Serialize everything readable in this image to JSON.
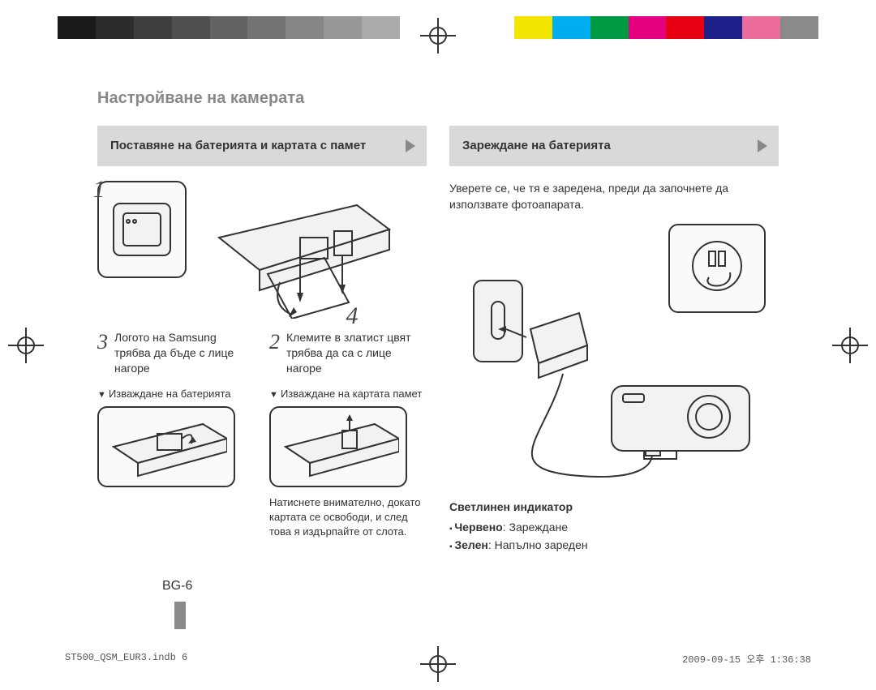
{
  "color_bar": [
    "#ffffff",
    "#fafaa0",
    "#5bd7e8",
    "#5fd060",
    "#e85ecb",
    "#d83030",
    "#2a35c8",
    "#141414",
    "#141414",
    "#303030",
    "#4a4a4a",
    "#666666",
    "#808080",
    "#9a9a9a",
    "#b4b4b4",
    "#ffffff",
    "#ffffff",
    "#f4ea3a",
    "#1fb6e0",
    "#1f9e3c",
    "#d93fc0",
    "#d12a2a",
    "#1f33b8",
    "#ffffff",
    "#f0c800",
    "#00a7d4",
    "#00a040",
    "#e23fb8",
    "#d22020",
    "#1a2db0",
    "#0a0a0a",
    "#ffffff",
    "#0a0a0a",
    "#f0e030",
    "#0ab0d8",
    "#0aa040",
    "#e040c0",
    "#d02020",
    "#1636b8",
    "#ffffff"
  ],
  "color_bar_fine": {
    "left_gray": [
      "#1a1a1a",
      "#2c2c2c",
      "#3e3e3e",
      "#505050",
      "#626262",
      "#747474",
      "#868686",
      "#989898",
      "#aaaaaa"
    ],
    "right_cmyk": [
      "#f2e600",
      "#00adee",
      "#009944",
      "#e4007f",
      "#e60012",
      "#1d2088",
      "#ec6d9b",
      "#8a8a8a"
    ]
  },
  "title": "Настройване на камерата",
  "left": {
    "banner": "Поставяне на батерията и картата с памет",
    "step_numbers": {
      "one": "1",
      "two": "2",
      "three": "3",
      "four": "4"
    },
    "step3_text": "Логото на Samsung трябва да бъде с лице нагоре",
    "step2_text": "Клемите в златист цвят трябва да са с лице нагоре",
    "remove_battery_label": "Изваждане на батерията",
    "remove_card_label": "Изваждане на картата памет",
    "card_tip": "Натиснете внимателно, докато картата се освободи, и след това я издърпайте от слота."
  },
  "right": {
    "banner": "Зареждане на батерията",
    "intro": "Уверете се, че тя е заредена, преди да започнете да използвате фотоапарата.",
    "indicator": {
      "header": "Светлинен индикатор",
      "red_label": "Червено",
      "red_text": ": Зареждане",
      "green_label": "Зелен",
      "green_text": ": Напълно зареден"
    }
  },
  "page_number": "BG-6",
  "footer": {
    "file": "ST500_QSM_EUR3.indb   6",
    "timestamp": "2009-09-15   오후 1:36:38"
  },
  "style": {
    "banner_bg": "#d9d9d9",
    "banner_arrow": "#888888",
    "title_color": "#888888",
    "text_color": "#333333",
    "page_bg": "#ffffff"
  }
}
